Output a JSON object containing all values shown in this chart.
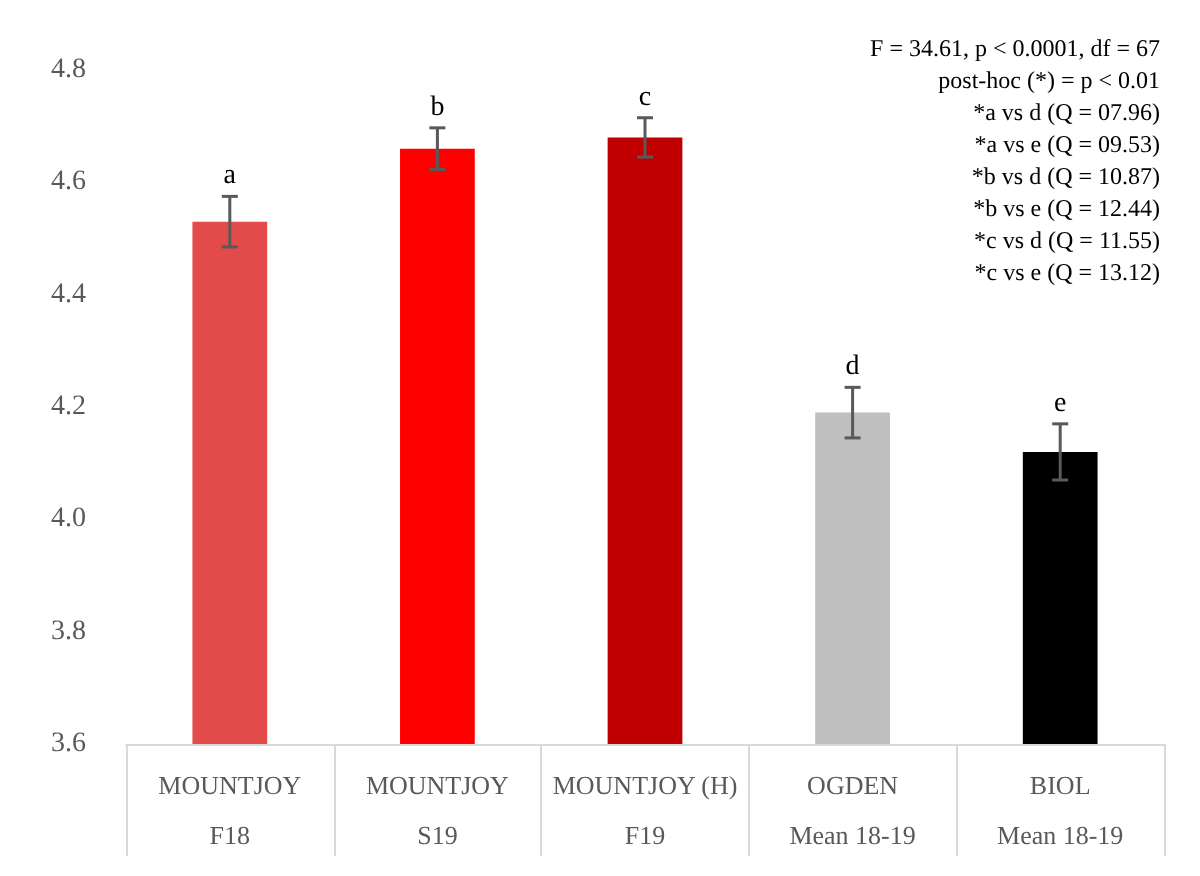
{
  "chart_data": {
    "type": "bar",
    "categories": [
      "MOUNTJOY\nF18",
      "MOUNTJOY\nS19",
      "MOUNTJOY (H)\nF19",
      "OGDEN\nMean 18-19",
      "BIOL\nMean 18-19"
    ],
    "values": [
      4.53,
      4.66,
      4.68,
      4.19,
      4.12
    ],
    "colors": [
      "#e34a4a",
      "#ff0000",
      "#c00000",
      "#bfbfbf",
      "#000000"
    ],
    "errors": [
      0.045,
      0.037,
      0.035,
      0.045,
      0.05
    ],
    "value_labels": [
      "a",
      "b",
      "c",
      "d",
      "e"
    ],
    "ylim": [
      3.6,
      4.8
    ],
    "yticks": [
      3.6,
      3.8,
      {
        "value": 4,
        "label": "4.0"
      },
      4.2,
      4.4,
      4.6,
      4.8
    ],
    "grid": false,
    "annotations": [
      "F = 34.61, p < 0.0001, df = 67",
      "post-hoc (*) = p < 0.01",
      "*a vs d (Q = 07.96)",
      "*a vs e (Q = 09.53)",
      "*b vs d (Q = 10.87)",
      "*b vs e (Q = 12.44)",
      "*c vs d (Q = 11.55)",
      "*c vs e (Q = 13.12)"
    ]
  }
}
